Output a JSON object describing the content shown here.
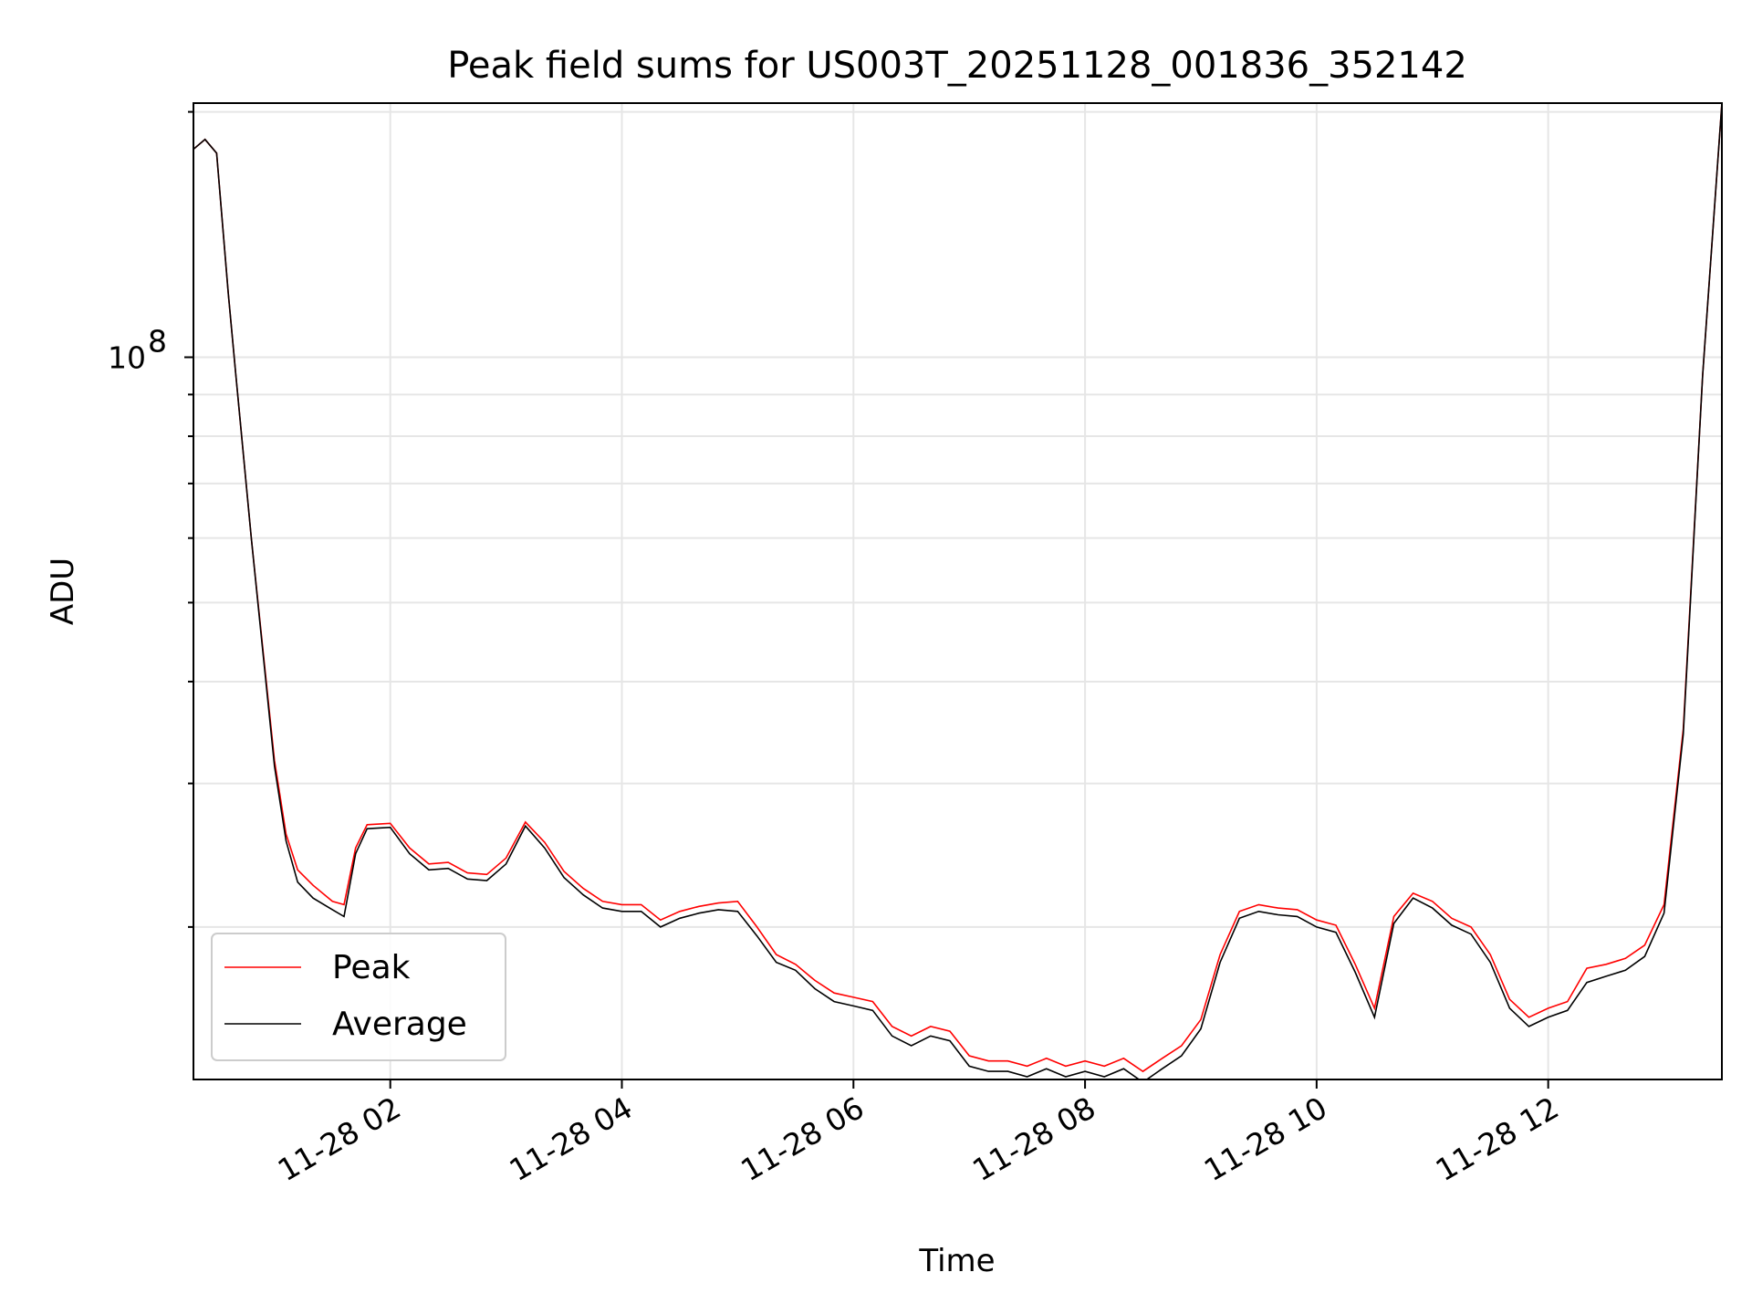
{
  "chart_data": {
    "type": "line",
    "title": "Peak field sums for US003T_20251128_001836_352142",
    "xlabel": "Time",
    "ylabel": "ADU",
    "yscale": "log",
    "ylim": [
      13000000,
      205000000
    ],
    "xlim": [
      "11-28 00:18",
      "11-28 13:30"
    ],
    "grid": true,
    "legend": {
      "placement": "lower-left"
    },
    "x_ticks": [
      "11-28 02",
      "11-28 04",
      "11-28 06",
      "11-28 08",
      "11-28 10",
      "11-28 12"
    ],
    "y_major_ticks": [
      {
        "label_base": "10",
        "label_exp": "8"
      }
    ],
    "x": [
      "00:18",
      "00:24",
      "00:30",
      "00:36",
      "00:40",
      "00:48",
      "01:00",
      "01:06",
      "01:12",
      "01:20",
      "01:30",
      "01:36",
      "01:42",
      "01:48",
      "02:00",
      "02:10",
      "02:20",
      "02:30",
      "02:40",
      "02:50",
      "03:00",
      "03:10",
      "03:20",
      "03:30",
      "03:40",
      "03:50",
      "04:00",
      "04:10",
      "04:20",
      "04:30",
      "04:40",
      "04:50",
      "05:00",
      "05:10",
      "05:20",
      "05:30",
      "05:40",
      "05:50",
      "06:00",
      "06:10",
      "06:20",
      "06:30",
      "06:40",
      "06:50",
      "07:00",
      "07:10",
      "07:20",
      "07:30",
      "07:40",
      "07:50",
      "08:00",
      "08:10",
      "08:20",
      "08:30",
      "08:40",
      "08:50",
      "09:00",
      "09:10",
      "09:20",
      "09:30",
      "09:40",
      "09:50",
      "10:00",
      "10:10",
      "10:20",
      "10:30",
      "10:40",
      "10:50",
      "11:00",
      "11:10",
      "11:20",
      "11:30",
      "11:40",
      "11:50",
      "12:00",
      "12:10",
      "12:20",
      "12:30",
      "12:40",
      "12:50",
      "13:00",
      "13:10",
      "13:20",
      "13:30"
    ],
    "series": [
      {
        "name": "Peak",
        "color": "#ff0000",
        "values": [
          180000000,
          185000000,
          178000000,
          120000000,
          95000000,
          60000000,
          32000000,
          26000000,
          23500000,
          22500000,
          21500000,
          21300000,
          25000000,
          26700000,
          26800000,
          25000000,
          23900000,
          24000000,
          23300000,
          23200000,
          24300000,
          26900000,
          25400000,
          23400000,
          22300000,
          21500000,
          21300000,
          21300000,
          20400000,
          20900000,
          21200000,
          21400000,
          21500000,
          20000000,
          18500000,
          18000000,
          17200000,
          16600000,
          16400000,
          16200000,
          15100000,
          14700000,
          15100000,
          14900000,
          13900000,
          13700000,
          13700000,
          13500000,
          13800000,
          13500000,
          13700000,
          13500000,
          13800000,
          13300000,
          13800000,
          14300000,
          15400000,
          18500000,
          20900000,
          21300000,
          21100000,
          21000000,
          20400000,
          20100000,
          18000000,
          15900000,
          20600000,
          22000000,
          21500000,
          20500000,
          20000000,
          18500000,
          16300000,
          15500000,
          15900000,
          16200000,
          17800000,
          18000000,
          18300000,
          19000000,
          21300000,
          35000000,
          95000000,
          205000000
        ]
      },
      {
        "name": "Average",
        "color": "#000000",
        "values": [
          180000000,
          185000000,
          178000000,
          120000000,
          95000000,
          60000000,
          31500000,
          25500000,
          22700000,
          21700000,
          21000000,
          20600000,
          24600000,
          26400000,
          26500000,
          24600000,
          23500000,
          23600000,
          22900000,
          22800000,
          23900000,
          26600000,
          25000000,
          23000000,
          21900000,
          21100000,
          20900000,
          20900000,
          20000000,
          20500000,
          20800000,
          21000000,
          20900000,
          19500000,
          18100000,
          17700000,
          16800000,
          16200000,
          16000000,
          15800000,
          14700000,
          14300000,
          14700000,
          14500000,
          13500000,
          13300000,
          13300000,
          13100000,
          13400000,
          13100000,
          13300000,
          13100000,
          13400000,
          12900000,
          13400000,
          13900000,
          15000000,
          18100000,
          20500000,
          20900000,
          20700000,
          20600000,
          20000000,
          19700000,
          17600000,
          15500000,
          20200000,
          21700000,
          21100000,
          20100000,
          19600000,
          18100000,
          15900000,
          15100000,
          15500000,
          15800000,
          17100000,
          17400000,
          17700000,
          18400000,
          20800000,
          34500000,
          95000000,
          205000000
        ]
      }
    ]
  }
}
